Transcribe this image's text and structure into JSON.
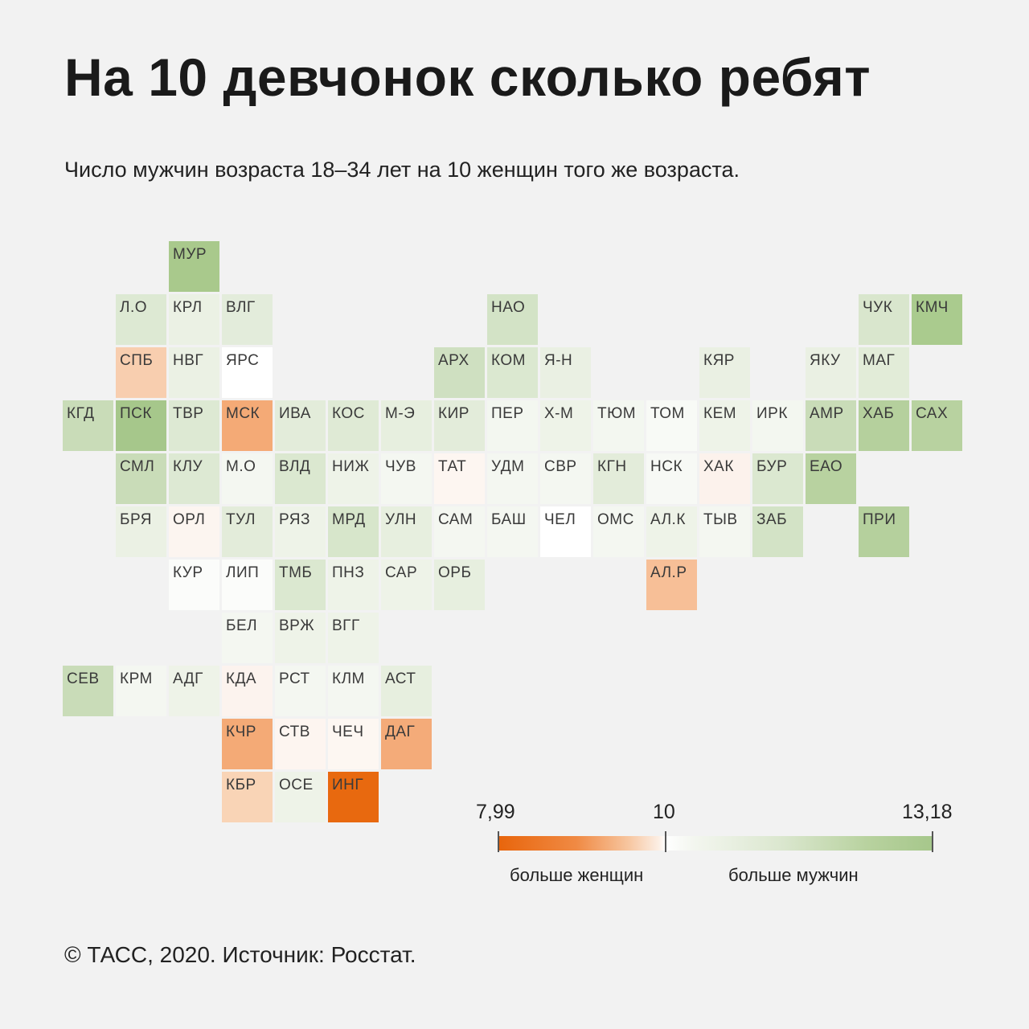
{
  "title": "На 10 девчонок сколько ребят",
  "subtitle": "Число мужчин возраста 18–34 лет на 10 женщин того же возраста.",
  "legend": {
    "min": "7,99",
    "mid": "10",
    "max": "13,18",
    "caption_left": "больше женщин",
    "caption_right": "больше мужчин",
    "colors": {
      "more_women": "#e8650c",
      "neutral": "#ffffff",
      "more_men": "#a6c78b"
    }
  },
  "footer": "© ТАСС, 2020. Источник: Росстат.",
  "regions": [
    {
      "code": "МУР",
      "row": 0,
      "col": 3,
      "color": "#a9c98c"
    },
    {
      "code": "Л.О",
      "row": 1,
      "col": 2,
      "color": "#dde9d3"
    },
    {
      "code": "КРЛ",
      "row": 1,
      "col": 3,
      "color": "#ebf1e4"
    },
    {
      "code": "ВЛГ",
      "row": 1,
      "col": 4,
      "color": "#e3ecdb"
    },
    {
      "code": "НАО",
      "row": 1,
      "col": 9,
      "color": "#d3e3c6"
    },
    {
      "code": "ЧУК",
      "row": 1,
      "col": 16,
      "color": "#d9e6cd"
    },
    {
      "code": "КМЧ",
      "row": 1,
      "col": 17,
      "color": "#aacb8e"
    },
    {
      "code": "СПБ",
      "row": 2,
      "col": 2,
      "color": "#f8ceaf"
    },
    {
      "code": "НВГ",
      "row": 2,
      "col": 3,
      "color": "#ebf1e4"
    },
    {
      "code": "ЯРС",
      "row": 2,
      "col": 4,
      "color": "#ffffff"
    },
    {
      "code": "АРХ",
      "row": 2,
      "col": 8,
      "color": "#cfe0c1"
    },
    {
      "code": "КОМ",
      "row": 2,
      "col": 9,
      "color": "#dbe8d0"
    },
    {
      "code": "Я-Н",
      "row": 2,
      "col": 10,
      "color": "#eaf0e3"
    },
    {
      "code": "КЯР",
      "row": 2,
      "col": 13,
      "color": "#eaf0e3"
    },
    {
      "code": "ЯКУ",
      "row": 2,
      "col": 15,
      "color": "#eaf0e3"
    },
    {
      "code": "МАГ",
      "row": 2,
      "col": 16,
      "color": "#e2ecd8"
    },
    {
      "code": "КГД",
      "row": 3,
      "col": 1,
      "color": "#c9dcb8"
    },
    {
      "code": "ПСК",
      "row": 3,
      "col": 2,
      "color": "#a6c78b"
    },
    {
      "code": "ТВР",
      "row": 3,
      "col": 3,
      "color": "#dde9d3"
    },
    {
      "code": "МСК",
      "row": 3,
      "col": 4,
      "color": "#f4aa76"
    },
    {
      "code": "ИВА",
      "row": 3,
      "col": 5,
      "color": "#e3ecda"
    },
    {
      "code": "КОС",
      "row": 3,
      "col": 6,
      "color": "#dfead5"
    },
    {
      "code": "М-Э",
      "row": 3,
      "col": 7,
      "color": "#e7efdf"
    },
    {
      "code": "КИР",
      "row": 3,
      "col": 8,
      "color": "#e3ecda"
    },
    {
      "code": "ПЕР",
      "row": 3,
      "col": 9,
      "color": "#f3f7f0"
    },
    {
      "code": "Х-М",
      "row": 3,
      "col": 10,
      "color": "#eef3e8"
    },
    {
      "code": "ТЮМ",
      "row": 3,
      "col": 11,
      "color": "#f3f7f0"
    },
    {
      "code": "ТОМ",
      "row": 3,
      "col": 12,
      "color": "#f8faf6"
    },
    {
      "code": "КЕМ",
      "row": 3,
      "col": 13,
      "color": "#eef3e8"
    },
    {
      "code": "ИРК",
      "row": 3,
      "col": 14,
      "color": "#f3f7f0"
    },
    {
      "code": "АМР",
      "row": 3,
      "col": 15,
      "color": "#c9dcb8"
    },
    {
      "code": "ХАБ",
      "row": 3,
      "col": 16,
      "color": "#b5d09d"
    },
    {
      "code": "САХ",
      "row": 3,
      "col": 17,
      "color": "#b8d2a0"
    },
    {
      "code": "СМЛ",
      "row": 4,
      "col": 2,
      "color": "#c9dcb8"
    },
    {
      "code": "КЛУ",
      "row": 4,
      "col": 3,
      "color": "#dde9d3"
    },
    {
      "code": "М.О",
      "row": 4,
      "col": 4,
      "color": "#f4f7f1"
    },
    {
      "code": "ВЛД",
      "row": 4,
      "col": 5,
      "color": "#dbe8d0"
    },
    {
      "code": "НИЖ",
      "row": 4,
      "col": 6,
      "color": "#eef3e8"
    },
    {
      "code": "ЧУВ",
      "row": 4,
      "col": 7,
      "color": "#f4f7f1"
    },
    {
      "code": "ТАТ",
      "row": 4,
      "col": 8,
      "color": "#fdf6f1"
    },
    {
      "code": "УДМ",
      "row": 4,
      "col": 9,
      "color": "#f4f7f1"
    },
    {
      "code": "СВР",
      "row": 4,
      "col": 10,
      "color": "#f4f7f1"
    },
    {
      "code": "КГН",
      "row": 4,
      "col": 11,
      "color": "#e3ecda"
    },
    {
      "code": "НСК",
      "row": 4,
      "col": 12,
      "color": "#f7f9f5"
    },
    {
      "code": "ХАК",
      "row": 4,
      "col": 13,
      "color": "#fcf2ec"
    },
    {
      "code": "БУР",
      "row": 4,
      "col": 14,
      "color": "#dbe8d0"
    },
    {
      "code": "ЕАО",
      "row": 4,
      "col": 15,
      "color": "#b8d2a0"
    },
    {
      "code": "БРЯ",
      "row": 5,
      "col": 2,
      "color": "#ebf1e4"
    },
    {
      "code": "ОРЛ",
      "row": 5,
      "col": 3,
      "color": "#fcf5f0"
    },
    {
      "code": "ТУЛ",
      "row": 5,
      "col": 4,
      "color": "#e3ecda"
    },
    {
      "code": "РЯЗ",
      "row": 5,
      "col": 5,
      "color": "#eef3e8"
    },
    {
      "code": "МРД",
      "row": 5,
      "col": 6,
      "color": "#d7e6cb"
    },
    {
      "code": "УЛН",
      "row": 5,
      "col": 7,
      "color": "#e7efdf"
    },
    {
      "code": "САМ",
      "row": 5,
      "col": 8,
      "color": "#f4f7f1"
    },
    {
      "code": "БАШ",
      "row": 5,
      "col": 9,
      "color": "#f4f7f1"
    },
    {
      "code": "ЧЕЛ",
      "row": 5,
      "col": 10,
      "color": "#ffffff"
    },
    {
      "code": "ОМС",
      "row": 5,
      "col": 11,
      "color": "#f4f7f1"
    },
    {
      "code": "АЛ.К",
      "row": 5,
      "col": 12,
      "color": "#eef3e8"
    },
    {
      "code": "ТЫВ",
      "row": 5,
      "col": 13,
      "color": "#f4f7f1"
    },
    {
      "code": "ЗАБ",
      "row": 5,
      "col": 14,
      "color": "#d3e3c6"
    },
    {
      "code": "ПРИ",
      "row": 5,
      "col": 16,
      "color": "#b5d09d"
    },
    {
      "code": "КУР",
      "row": 6,
      "col": 3,
      "color": "#fbfcfa"
    },
    {
      "code": "ЛИП",
      "row": 6,
      "col": 4,
      "color": "#fbfcfa"
    },
    {
      "code": "ТМБ",
      "row": 6,
      "col": 5,
      "color": "#dbe8d0"
    },
    {
      "code": "ПНЗ",
      "row": 6,
      "col": 6,
      "color": "#eef3e8"
    },
    {
      "code": "САР",
      "row": 6,
      "col": 7,
      "color": "#eef3e8"
    },
    {
      "code": "ОРБ",
      "row": 6,
      "col": 8,
      "color": "#e7efdf"
    },
    {
      "code": "АЛ.Р",
      "row": 6,
      "col": 12,
      "color": "#f7bf97"
    },
    {
      "code": "БЕЛ",
      "row": 7,
      "col": 4,
      "color": "#f4f7f1"
    },
    {
      "code": "ВРЖ",
      "row": 7,
      "col": 5,
      "color": "#eef3e8"
    },
    {
      "code": "ВГГ",
      "row": 7,
      "col": 6,
      "color": "#eef3e8"
    },
    {
      "code": "СЕВ",
      "row": 8,
      "col": 1,
      "color": "#c9dcb8"
    },
    {
      "code": "КРМ",
      "row": 8,
      "col": 2,
      "color": "#f4f7f1"
    },
    {
      "code": "АДГ",
      "row": 8,
      "col": 3,
      "color": "#eef3e8"
    },
    {
      "code": "КДА",
      "row": 8,
      "col": 4,
      "color": "#fcf3ee"
    },
    {
      "code": "РСТ",
      "row": 8,
      "col": 5,
      "color": "#f4f7f1"
    },
    {
      "code": "КЛМ",
      "row": 8,
      "col": 6,
      "color": "#f4f7f1"
    },
    {
      "code": "АСТ",
      "row": 8,
      "col": 7,
      "color": "#e7efdf"
    },
    {
      "code": "КЧР",
      "row": 9,
      "col": 4,
      "color": "#f4aa76"
    },
    {
      "code": "СТВ",
      "row": 9,
      "col": 5,
      "color": "#fdf5f0"
    },
    {
      "code": "ЧЕЧ",
      "row": 9,
      "col": 6,
      "color": "#fdf7f2"
    },
    {
      "code": "ДАГ",
      "row": 9,
      "col": 7,
      "color": "#f4ab79"
    },
    {
      "code": "КБР",
      "row": 10,
      "col": 4,
      "color": "#f9d4b6"
    },
    {
      "code": "ОСЕ",
      "row": 10,
      "col": 5,
      "color": "#eef3e8"
    },
    {
      "code": "ИНГ",
      "row": 10,
      "col": 6,
      "color": "#e8690f"
    }
  ]
}
